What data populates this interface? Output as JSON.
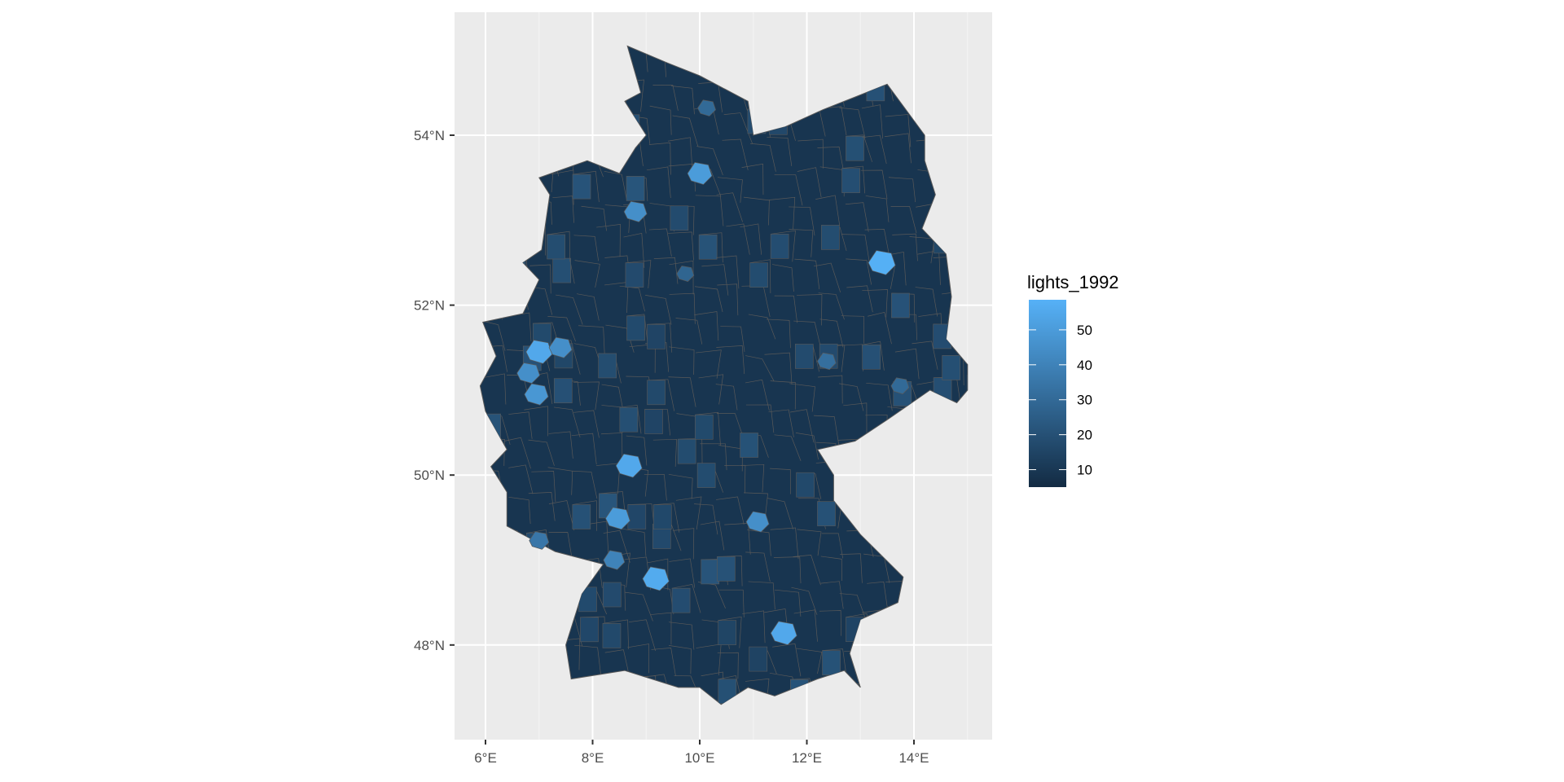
{
  "chart_data": {
    "type": "choropleth-map",
    "legend_title": "lights_1992",
    "legend_placement": "right",
    "color_scale": {
      "low": "#132B43",
      "high": "#56B1F7",
      "limits": [
        5,
        58.6
      ],
      "breaks": [
        10,
        20,
        30,
        40,
        50
      ],
      "break_labels": [
        "10",
        "20",
        "30",
        "40",
        "50"
      ]
    },
    "x_axis": {
      "range": [
        5.45,
        15.5
      ],
      "ticks": [
        6,
        8,
        10,
        12,
        14
      ],
      "tick_labels": [
        "6°E",
        "8°E",
        "10°E",
        "12°E",
        "14°E"
      ]
    },
    "y_axis": {
      "range": [
        46.8,
        55.4
      ],
      "ticks": [
        48,
        50,
        52,
        54
      ],
      "tick_labels": [
        "48°N",
        "50°N",
        "52°N",
        "54°N"
      ]
    },
    "grid": true,
    "panel_background": "#EBEBEB",
    "district_border_color": "#595959",
    "typical_value": 9,
    "bright_districts": [
      {
        "lon": 13.4,
        "lat": 52.5,
        "value": 58
      },
      {
        "lon": 10.0,
        "lat": 53.55,
        "value": 50
      },
      {
        "lon": 8.8,
        "lat": 53.1,
        "value": 45
      },
      {
        "lon": 7.0,
        "lat": 51.45,
        "value": 55
      },
      {
        "lon": 7.4,
        "lat": 51.5,
        "value": 45
      },
      {
        "lon": 6.95,
        "lat": 50.95,
        "value": 48
      },
      {
        "lon": 6.8,
        "lat": 51.2,
        "value": 45
      },
      {
        "lon": 8.68,
        "lat": 50.11,
        "value": 55
      },
      {
        "lon": 8.47,
        "lat": 49.49,
        "value": 50
      },
      {
        "lon": 9.18,
        "lat": 48.78,
        "value": 56
      },
      {
        "lon": 11.57,
        "lat": 48.14,
        "value": 55
      },
      {
        "lon": 11.08,
        "lat": 49.45,
        "value": 45
      },
      {
        "lon": 9.73,
        "lat": 52.37,
        "value": 28
      },
      {
        "lon": 12.37,
        "lat": 51.34,
        "value": 32
      },
      {
        "lon": 13.74,
        "lat": 51.05,
        "value": 30
      },
      {
        "lon": 7.0,
        "lat": 49.23,
        "value": 35
      },
      {
        "lon": 10.13,
        "lat": 54.32,
        "value": 30
      },
      {
        "lon": 8.4,
        "lat": 49.0,
        "value": 40
      }
    ]
  }
}
